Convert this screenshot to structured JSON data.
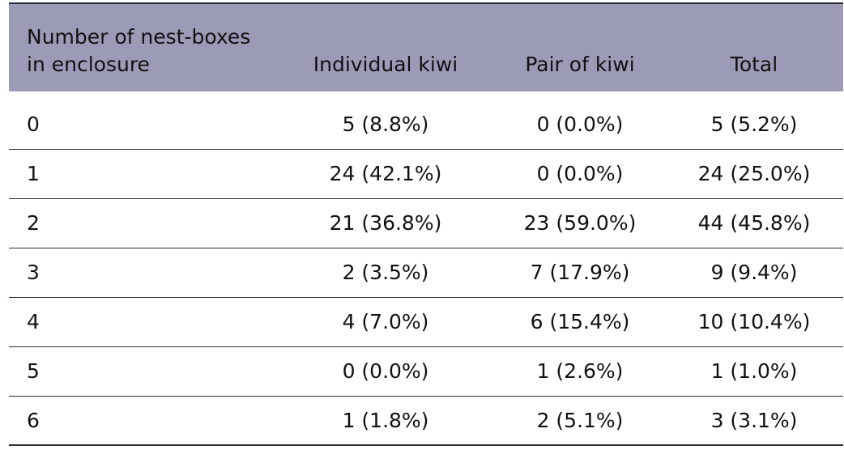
{
  "table": {
    "headers": {
      "label_line1": "Number of nest-boxes",
      "label_line2": "in enclosure",
      "individual": "Individual kiwi",
      "pair": "Pair of kiwi",
      "total": "Total"
    },
    "rows": [
      {
        "boxes": "0",
        "individual": "5 (8.8%)",
        "pair": "0 (0.0%)",
        "total": "5 (5.2%)"
      },
      {
        "boxes": "1",
        "individual": "24 (42.1%)",
        "pair": "0 (0.0%)",
        "total": "24 (25.0%)"
      },
      {
        "boxes": "2",
        "individual": "21 (36.8%)",
        "pair": "23 (59.0%)",
        "total": "44 (45.8%)"
      },
      {
        "boxes": "3",
        "individual": "2 (3.5%)",
        "pair": "7 (17.9%)",
        "total": "9 (9.4%)"
      },
      {
        "boxes": "4",
        "individual": "4 (7.0%)",
        "pair": "6 (15.4%)",
        "total": "10 (10.4%)"
      },
      {
        "boxes": "5",
        "individual": "0 (0.0%)",
        "pair": "1 (2.6%)",
        "total": "1 (1.0%)"
      },
      {
        "boxes": "6",
        "individual": "1 (1.8%)",
        "pair": "2 (5.1%)",
        "total": "3 (3.1%)"
      }
    ],
    "colors": {
      "header_bg": "#9b9bb8",
      "rule": "#2a2a3a"
    }
  }
}
